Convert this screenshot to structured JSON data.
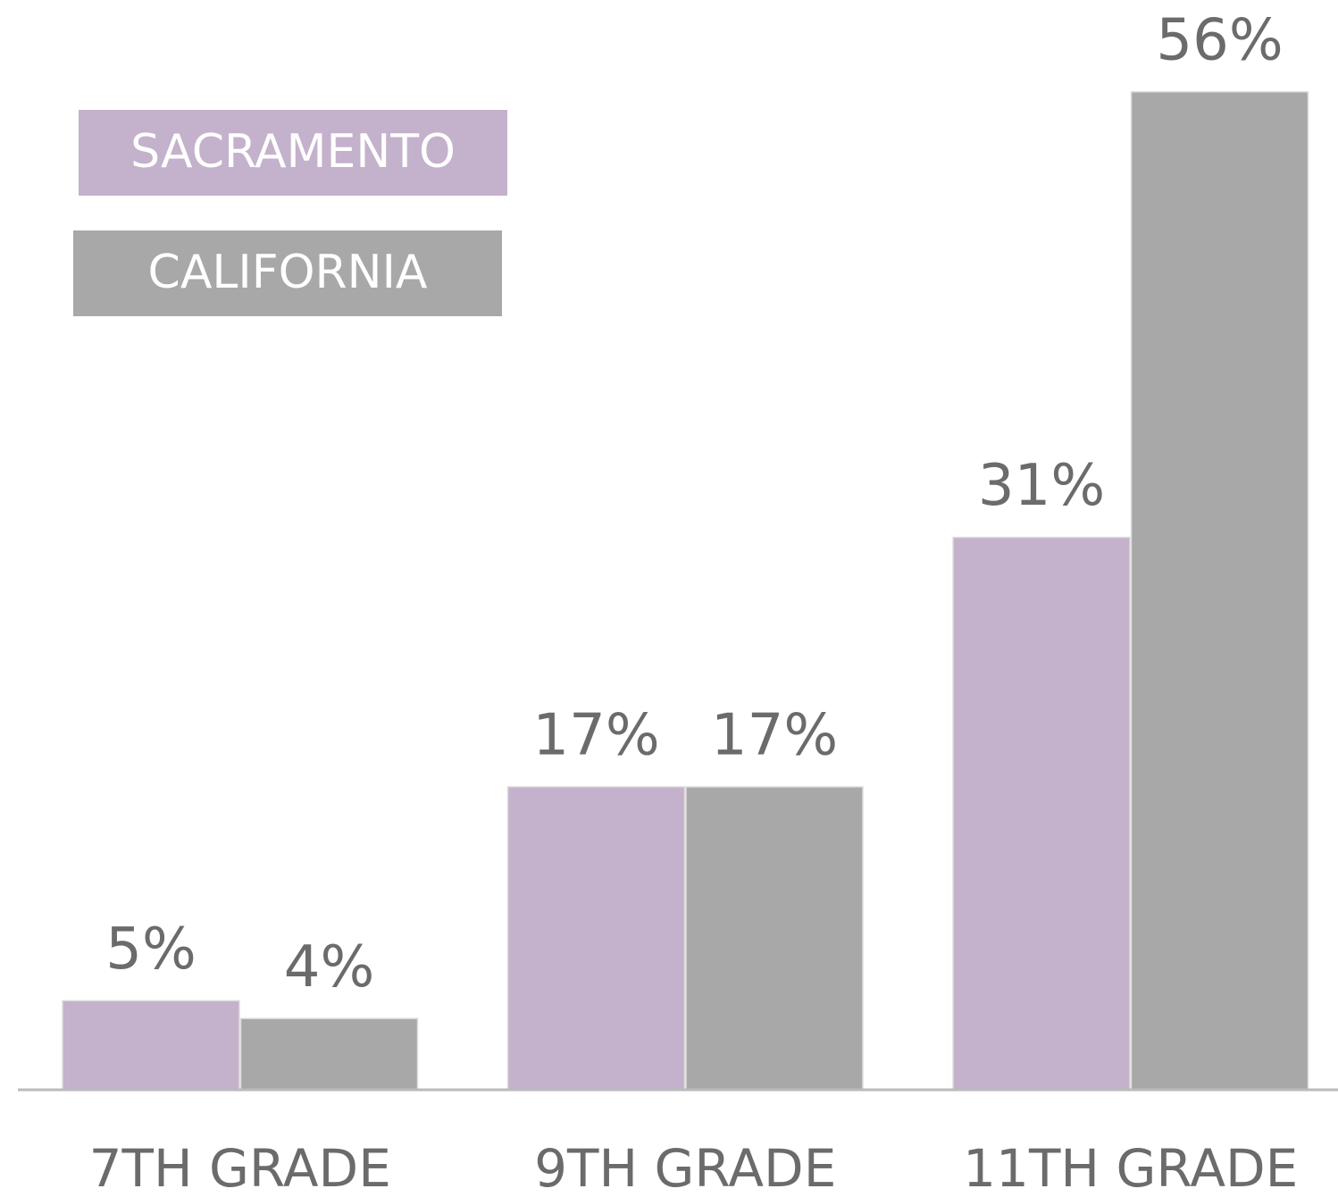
{
  "chart_data": {
    "type": "bar",
    "categories": [
      "7TH GRADE",
      "9TH GRADE",
      "11TH GRADE"
    ],
    "series": [
      {
        "name": "SACRAMENTO",
        "color": "#c4b1cb",
        "values": [
          5,
          17,
          31
        ],
        "value_labels": [
          "5%",
          "17%",
          "31%"
        ]
      },
      {
        "name": "CALIFORNIA",
        "color": "#a8a8a8",
        "values": [
          4,
          17,
          56
        ],
        "value_labels": [
          "4%",
          "17%",
          "56%"
        ]
      }
    ]
  }
}
